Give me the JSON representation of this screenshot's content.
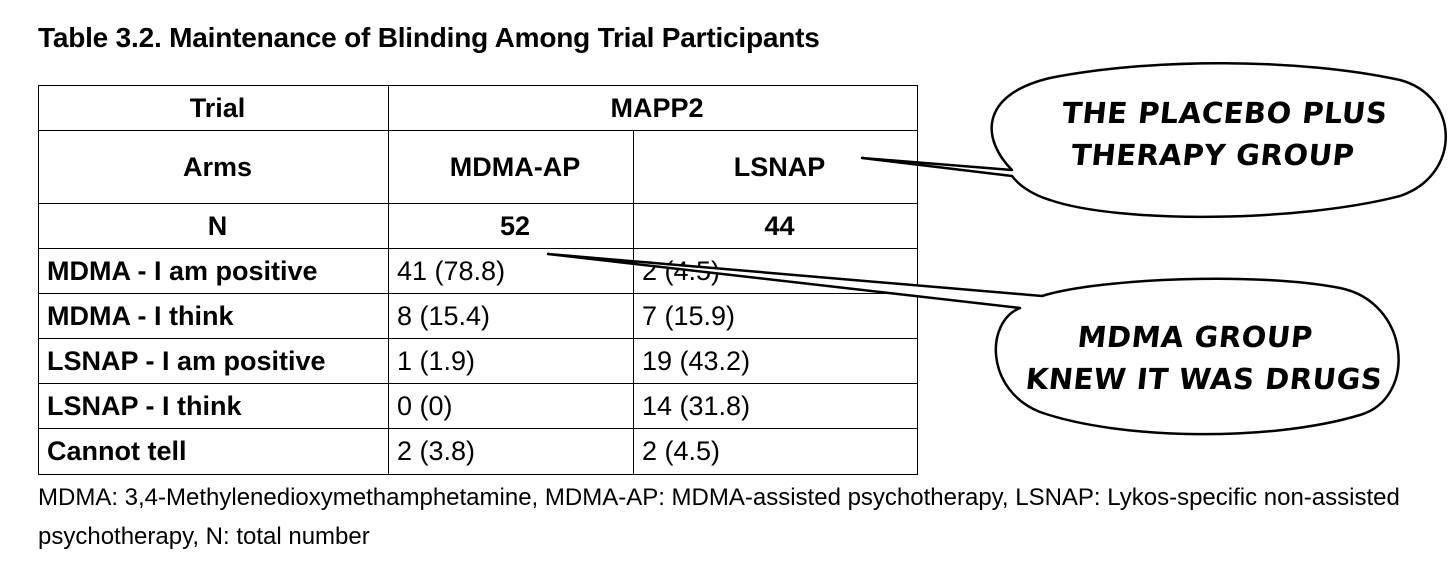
{
  "title": "Table 3.2. Maintenance of Blinding Among Trial Participants",
  "table": {
    "trial_label": "Trial",
    "trial_value": "MAPP2",
    "arms_label": "Arms",
    "arm1": "MDMA-AP",
    "arm2": "LSNAP",
    "n_label": "N",
    "n1": "52",
    "n2": "44",
    "rows": [
      {
        "label": "MDMA - I am positive",
        "v1": "41 (78.8)",
        "v2": "2 (4.5)"
      },
      {
        "label": "MDMA - I think",
        "v1": "8 (15.4)",
        "v2": "7 (15.9)"
      },
      {
        "label": "LSNAP - I am positive",
        "v1": "1 (1.9)",
        "v2": "19 (43.2)"
      },
      {
        "label": "LSNAP - I think",
        "v1": "0 (0)",
        "v2": "14 (31.8)"
      },
      {
        "label": "Cannot tell",
        "v1": "2 (3.8)",
        "v2": "2 (4.5)"
      }
    ]
  },
  "footnote": "MDMA: 3,4-Methylenedioxymethamphetamine, MDMA-AP: MDMA-assisted psychotherapy, LSNAP: Lykos-specific non-assisted psychotherapy, N: total number",
  "annotations": {
    "bubble1": {
      "line1": "THE PLACEBO PLUS",
      "line2": "THERAPY GROUP"
    },
    "bubble2": {
      "line1": "MDMA GROUP",
      "line2": "KNEW IT WAS DRUGS"
    }
  }
}
